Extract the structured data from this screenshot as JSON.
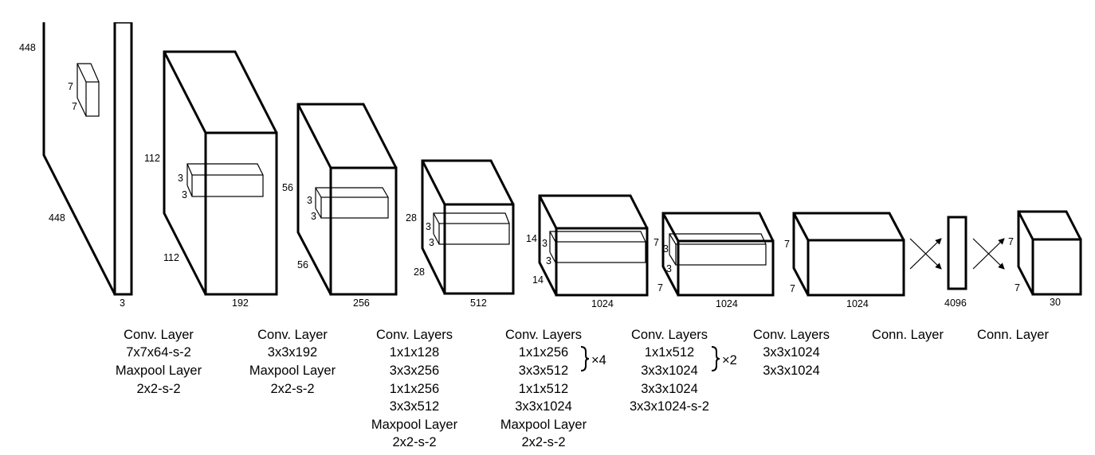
{
  "dims": {
    "input": {
      "height": "448",
      "width": "448",
      "depth": "3",
      "kernel_a": "7",
      "kernel_b": "7"
    },
    "b2": {
      "height": "112",
      "width": "112",
      "depth": "192",
      "kernel_a": "3",
      "kernel_b": "3"
    },
    "b3": {
      "height": "56",
      "width": "56",
      "depth": "256",
      "kernel_a": "3",
      "kernel_b": "3"
    },
    "b4": {
      "height": "28",
      "width": "28",
      "depth": "512",
      "kernel_a": "3",
      "kernel_b": "3"
    },
    "b5": {
      "height": "14",
      "width": "14",
      "depth": "1024",
      "kernel_a": "3",
      "kernel_b": "3"
    },
    "b6": {
      "height": "7",
      "width": "7",
      "depth": "1024",
      "kernel_a": "3",
      "kernel_b": "3"
    },
    "b7": {
      "height": "7",
      "width": "7",
      "depth": "1024"
    },
    "fc": {
      "depth": "4096"
    },
    "out": {
      "height": "7",
      "width": "7",
      "depth": "30"
    }
  },
  "captions": [
    {
      "lines": [
        "Conv. Layer",
        "7x7x64-s-2",
        "Maxpool Layer",
        "2x2-s-2"
      ]
    },
    {
      "lines": [
        "Conv. Layer",
        "3x3x192",
        "Maxpool Layer",
        "2x2-s-2"
      ]
    },
    {
      "lines": [
        "Conv. Layers",
        "1x1x128",
        "3x3x256",
        "1x1x256",
        "3x3x512",
        "Maxpool Layer",
        "2x2-s-2"
      ]
    },
    {
      "lines": [
        "Conv. Layers",
        "1x1x256",
        "3x3x512",
        "1x1x512",
        "3x3x1024",
        "Maxpool Layer",
        "2x2-s-2"
      ],
      "repeat": "×4"
    },
    {
      "lines": [
        "Conv. Layers",
        "1x1x512",
        "3x3x1024",
        "3x3x1024",
        "3x3x1024-s-2"
      ],
      "repeat": "×2"
    },
    {
      "lines": [
        "Conv. Layers",
        "3x3x1024",
        "3x3x1024"
      ]
    },
    {
      "lines": [
        "Conn. Layer"
      ]
    },
    {
      "lines": [
        "Conn. Layer"
      ]
    }
  ]
}
